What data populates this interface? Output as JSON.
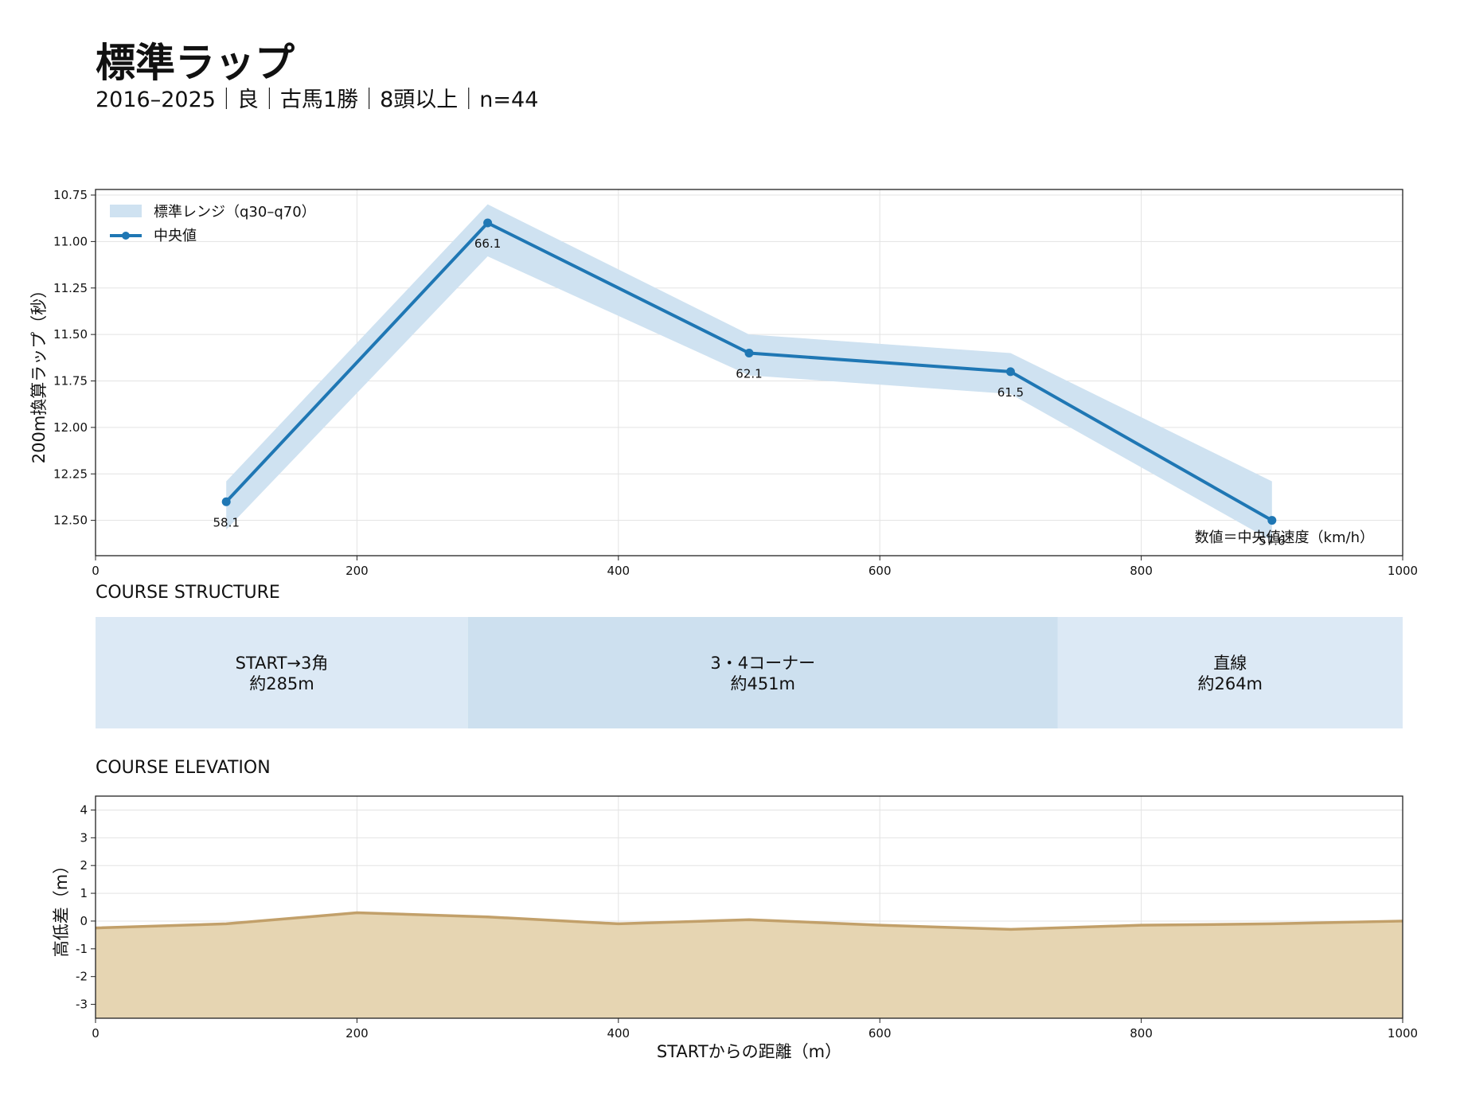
{
  "title": "標準ラップ",
  "subtitle": "2016–2025｜良｜古馬1勝｜8頭以上｜n=44",
  "colors": {
    "median": "#1f77b4",
    "band": "#cfe2f1",
    "seg_light": "#dce9f5",
    "seg_dark": "#cde0ef",
    "elev_fill": "#e6d5b2",
    "elev_line": "#c2a06a",
    "grid": "#e3e3e3"
  },
  "chart_data": [
    {
      "id": "lap",
      "type": "line",
      "ylabel": "200m換算ラップ（秒）",
      "xlim": [
        0,
        1000
      ],
      "ylim": [
        12.69,
        10.72
      ],
      "y_inverted": true,
      "xticks": [
        0,
        200,
        400,
        600,
        800,
        1000
      ],
      "yticks": [
        10.75,
        11.0,
        11.25,
        11.5,
        11.75,
        12.0,
        12.25,
        12.5
      ],
      "x": [
        100,
        300,
        500,
        700,
        900
      ],
      "band_low": [
        12.29,
        10.8,
        11.5,
        11.6,
        12.29
      ],
      "band_high": [
        12.55,
        11.08,
        11.72,
        11.82,
        12.61
      ],
      "median": [
        12.4,
        10.9,
        11.6,
        11.7,
        12.5
      ],
      "speed_labels": [
        "58.1",
        "66.1",
        "62.1",
        "61.5",
        "57.6"
      ],
      "legend": {
        "position": "top-left",
        "band": "標準レンジ（q30–q70）",
        "line": "中央値"
      },
      "annotation": "数値＝中央値速度（km/h）",
      "grid": true
    },
    {
      "id": "structure",
      "type": "bar",
      "title": "COURSE STRUCTURE",
      "xlim": [
        0,
        1000
      ],
      "segments": [
        {
          "start": 0,
          "end": 285,
          "name": "START→3角",
          "length": "約285m"
        },
        {
          "start": 285,
          "end": 736,
          "name": "3・4コーナー",
          "length": "約451m"
        },
        {
          "start": 736,
          "end": 1000,
          "name": "直線",
          "length": "約264m"
        }
      ]
    },
    {
      "id": "elevation",
      "type": "area",
      "title": "COURSE ELEVATION",
      "xlabel": "STARTからの距離（m）",
      "ylabel": "高低差（m）",
      "xlim": [
        0,
        1000
      ],
      "ylim": [
        -3.5,
        4.5
      ],
      "xticks": [
        0,
        200,
        400,
        600,
        800,
        1000
      ],
      "yticks": [
        4,
        3,
        2,
        1,
        0,
        -1,
        -2,
        -3
      ],
      "x": [
        0,
        100,
        200,
        300,
        400,
        500,
        600,
        700,
        800,
        900,
        1000
      ],
      "y": [
        -0.25,
        -0.1,
        0.3,
        0.15,
        -0.1,
        0.05,
        -0.15,
        -0.3,
        -0.15,
        -0.1,
        0.0
      ],
      "grid": true
    }
  ]
}
